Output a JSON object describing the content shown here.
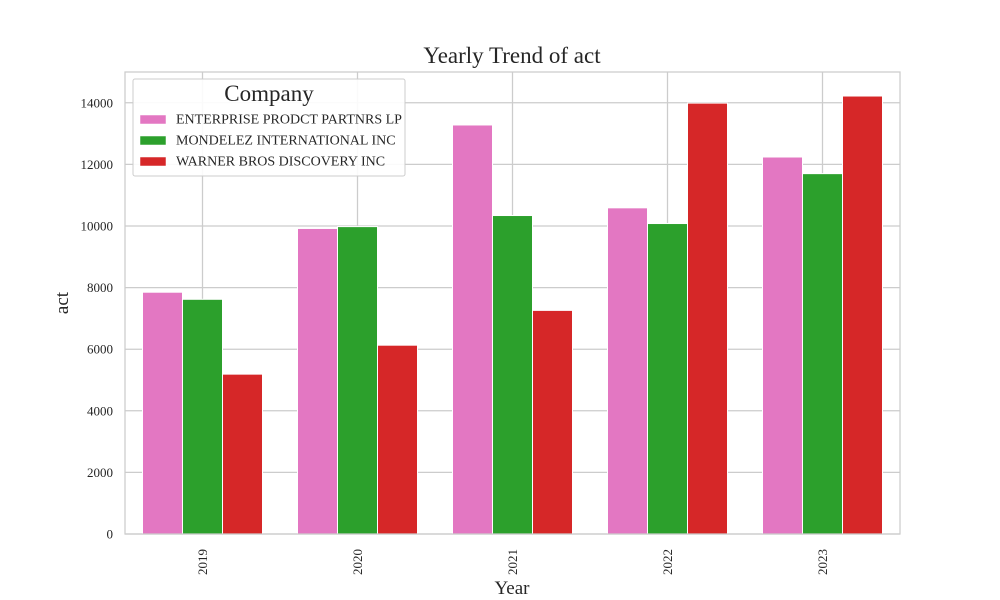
{
  "chart_data": {
    "type": "bar",
    "title": "Yearly Trend of act",
    "xlabel": "Year",
    "ylabel": "act",
    "categories": [
      "2019",
      "2020",
      "2021",
      "2022",
      "2023"
    ],
    "ylim": [
      0,
      15000
    ],
    "yticks": [
      0,
      2000,
      4000,
      6000,
      8000,
      10000,
      12000,
      14000
    ],
    "grid": true,
    "legend_title": "Company",
    "legend_position": "top-left",
    "series": [
      {
        "name": "ENTERPRISE PRODCT PARTNRS LP",
        "color": "#e377c2",
        "values": [
          7850,
          9920,
          13280,
          10590,
          12240
        ]
      },
      {
        "name": "MONDELEZ INTERNATIONAL INC",
        "color": "#2ca02c",
        "values": [
          7620,
          9980,
          10340,
          10080,
          11700
        ]
      },
      {
        "name": "WARNER BROS DISCOVERY INC",
        "color": "#d62728",
        "values": [
          5190,
          6130,
          7260,
          13990,
          14220
        ]
      }
    ]
  }
}
